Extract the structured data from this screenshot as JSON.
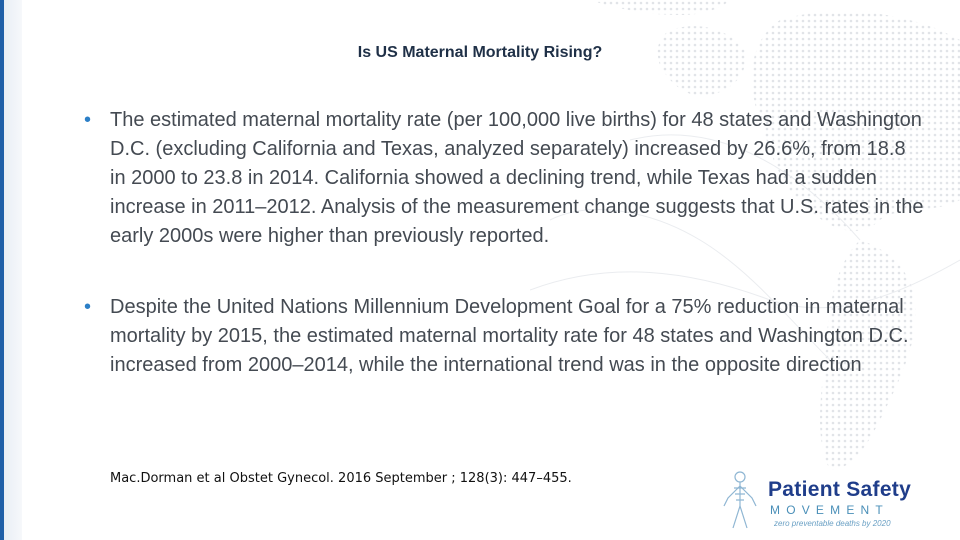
{
  "slide": {
    "title": "Is US Maternal Mortality Rising?",
    "bullets": [
      {
        "text": "The estimated maternal mortality rate (per 100,000 live births) for 48 states and Washington D.C. (excluding California and Texas, analyzed separately) increased by 26.6%, from 18.8 in 2000 to 23.8 in 2014. California showed a declining trend, while Texas had a sudden increase in 2011–2012. Analysis of the measurement change suggests that U.S. rates in the early 2000s were higher than previously reported."
      },
      {
        "text": "Despite the United Nations Millennium Development Goal for a 75% reduction in maternal mortality by 2015, the estimated maternal mortality rate for 48 states and Washington D.C. increased from 2000–2014, while the international trend was in the opposite direction"
      }
    ],
    "bullet_symbol": "•",
    "citation": "Mac.Dorman et al Obstet Gynecol. 2016 September ; 128(3): 447–455."
  },
  "logo": {
    "name": "Patient Safety",
    "subtitle": "MOVEMENT",
    "tagline": "zero preventable deaths by 2020"
  },
  "colors": {
    "accent_bar": "#1f5fa8",
    "bullet": "#2c7fc7",
    "title": "#1f3047",
    "body_text": "#444a52",
    "logo_primary": "#1f3d8a",
    "logo_secondary": "#4a8fb8"
  }
}
